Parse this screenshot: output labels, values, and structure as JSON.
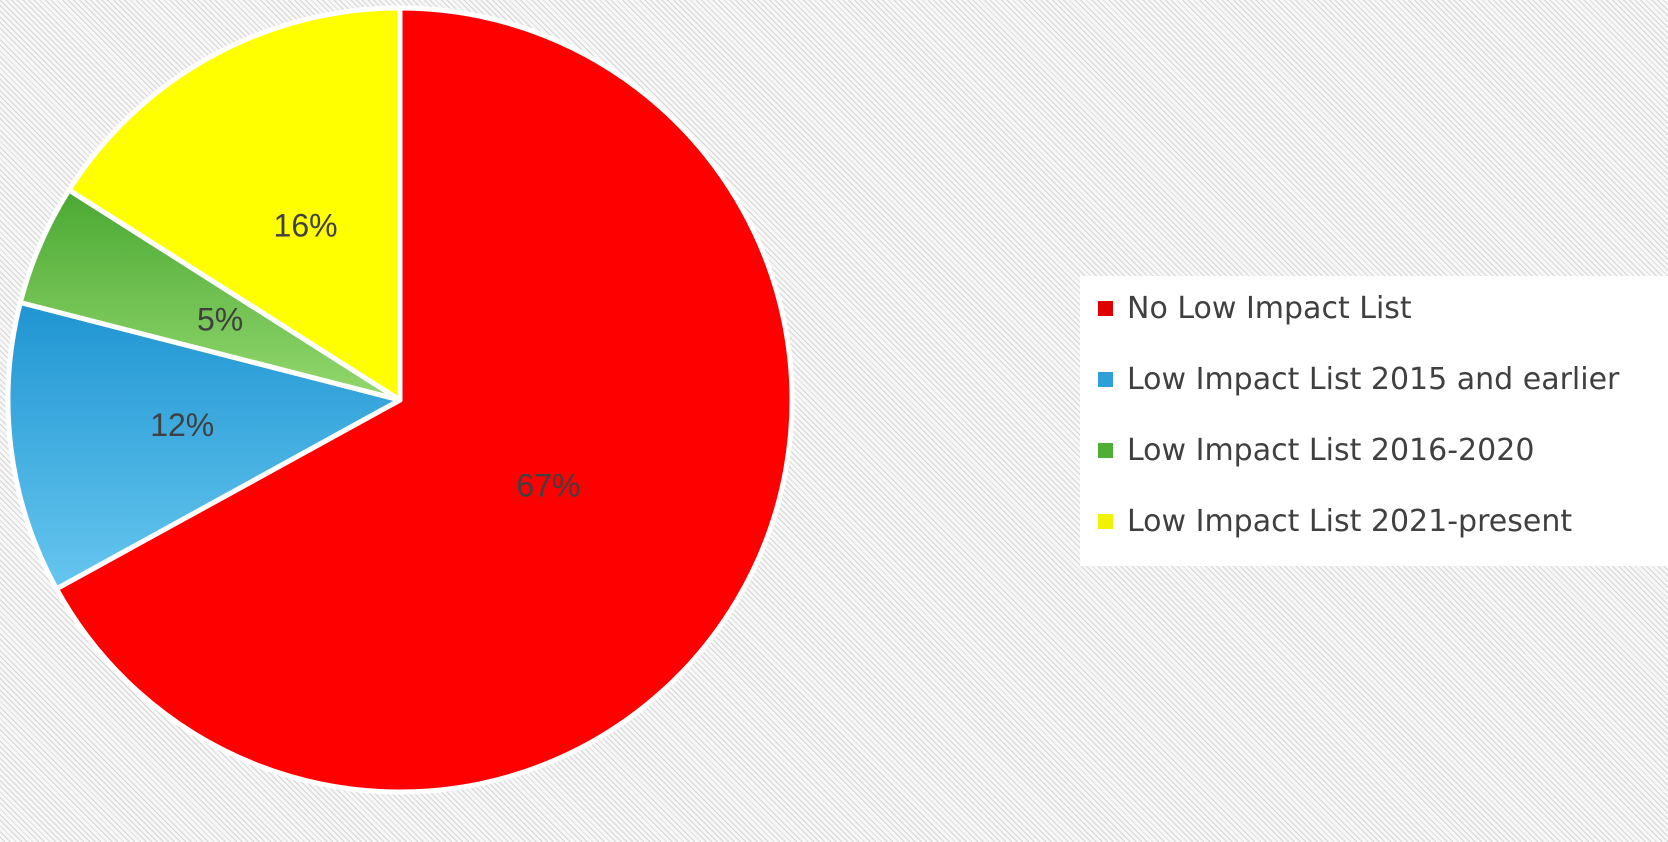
{
  "chart_data": {
    "type": "pie",
    "categories": [
      "No Low Impact List",
      "Low Impact List 2015 and earlier",
      "Low Impact List 2016-2020",
      "Low Impact List 2021-present"
    ],
    "values": [
      67,
      12,
      5,
      16
    ],
    "data_labels": [
      "67%",
      "12%",
      "5%",
      "16%"
    ],
    "colors": [
      "#ff0000",
      "#35a6dc",
      "#6cc24a",
      "#ffff00"
    ],
    "start": "12 o'clock",
    "direction": "clockwise",
    "legend_position": "right",
    "legend_marker_colors": [
      "#e00000",
      "#2e9fd8",
      "#4fae34",
      "#f2f200"
    ]
  }
}
